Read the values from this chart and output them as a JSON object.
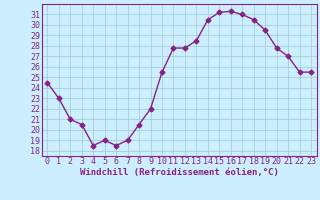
{
  "x": [
    0,
    1,
    2,
    3,
    4,
    5,
    6,
    7,
    8,
    9,
    10,
    11,
    12,
    13,
    14,
    15,
    16,
    17,
    18,
    19,
    20,
    21,
    22,
    23
  ],
  "y": [
    24.5,
    23.0,
    21.0,
    20.5,
    18.5,
    19.0,
    18.5,
    19.0,
    20.5,
    22.0,
    25.5,
    27.8,
    27.8,
    28.5,
    30.5,
    31.2,
    31.3,
    31.0,
    30.5,
    29.5,
    27.8,
    27.0,
    25.5,
    25.5
  ],
  "line_color": "#882288",
  "marker": "D",
  "markersize": 2.5,
  "linewidth": 1.0,
  "bg_color": "#cceeff",
  "grid_color": "#99cccc",
  "xlabel": "Windchill (Refroidissement éolien,°C)",
  "xlabel_fontsize": 6.5,
  "tick_fontsize": 6.0,
  "xlim": [
    -0.5,
    23.5
  ],
  "ylim": [
    17.5,
    32.0
  ],
  "yticks": [
    18,
    19,
    20,
    21,
    22,
    23,
    24,
    25,
    26,
    27,
    28,
    29,
    30,
    31
  ],
  "xticks": [
    0,
    1,
    2,
    3,
    4,
    5,
    6,
    7,
    8,
    9,
    10,
    11,
    12,
    13,
    14,
    15,
    16,
    17,
    18,
    19,
    20,
    21,
    22,
    23
  ]
}
